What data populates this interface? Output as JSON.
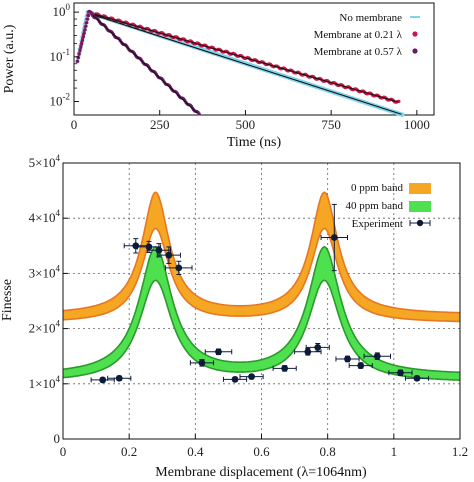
{
  "chart_data": [
    {
      "type": "scatter",
      "panel": "top",
      "xlabel": "Time (ns)",
      "ylabel": "Power (a.u.)",
      "xlim": [
        0,
        1050
      ],
      "ylim_log": [
        0.005,
        1.6
      ],
      "y_scale": "log",
      "grid": false,
      "legend_position": "top-right",
      "x_ticks": [
        {
          "value": 0,
          "label": "0"
        },
        {
          "value": 250,
          "label": "250"
        },
        {
          "value": 500,
          "label": "500"
        },
        {
          "value": 750,
          "label": "750"
        },
        {
          "value": 1000,
          "label": "1000"
        }
      ],
      "y_ticks": [
        {
          "value": 1,
          "label": "10",
          "exp": "0"
        },
        {
          "value": 0.1,
          "label": "10",
          "exp": "-1"
        },
        {
          "value": 0.01,
          "label": "10",
          "exp": "-2"
        }
      ],
      "series": [
        {
          "name": "No membrane",
          "color": "#7fd3ec",
          "peak_x": 40,
          "peak_y": 1.0,
          "end_x": 960,
          "end_y": 0.005
        },
        {
          "name": "Membrane at 0.21 λ",
          "color": "#c8184a",
          "peak_x": 42,
          "peak_y": 1.0,
          "end_x": 950,
          "end_y": 0.0095
        },
        {
          "name": "Membrane at 0.57 λ",
          "color": "#6a1a66",
          "peak_x": 45,
          "peak_y": 1.0,
          "end_x": 365,
          "end_y": 0.0052
        }
      ]
    },
    {
      "type": "line",
      "panel": "bottom",
      "xlabel": "Membrane displacement (λ=1064nm)",
      "ylabel": "Finesse",
      "xlim": [
        0,
        1.2
      ],
      "ylim": [
        0,
        50000
      ],
      "grid": true,
      "legend_position": "top-right",
      "x_ticks": [
        {
          "value": 0,
          "label": "0"
        },
        {
          "value": 0.2,
          "label": "0.2"
        },
        {
          "value": 0.4,
          "label": "0.4"
        },
        {
          "value": 0.6,
          "label": "0.6"
        },
        {
          "value": 0.8,
          "label": "0.8"
        },
        {
          "value": 1.0,
          "label": "1"
        },
        {
          "value": 1.2,
          "label": "1.2"
        }
      ],
      "y_ticks": [
        {
          "value": 0,
          "label": "0",
          "exp": ""
        },
        {
          "value": 10000,
          "label": "1×10",
          "exp": "4"
        },
        {
          "value": 20000,
          "label": "2×10",
          "exp": "4"
        },
        {
          "value": 30000,
          "label": "3×10",
          "exp": "4"
        },
        {
          "value": 40000,
          "label": "4×10",
          "exp": "4"
        },
        {
          "value": 50000,
          "label": "5×10",
          "exp": "4"
        }
      ],
      "bands": [
        {
          "name": "0 ppm band",
          "color": "#f5a623",
          "edge_color": "#e87722",
          "base_low": 21000,
          "base_high": 22500,
          "peak_low": 38000,
          "peak_high": 44500,
          "peaks": [
            0.28,
            0.79
          ]
        },
        {
          "name": "40 ppm band",
          "color": "#4ee04e",
          "edge_color": "#2a9a2a",
          "base_low": 10200,
          "base_high": 11500,
          "peak_low": 28500,
          "peak_high": 34500,
          "peaks": [
            0.28,
            0.79
          ]
        }
      ],
      "experiment": {
        "name": "Experiment",
        "color": "#0d1b3a",
        "points": [
          {
            "x": 0.12,
            "y": 10700,
            "xerr": 0.035,
            "yerr": 400
          },
          {
            "x": 0.17,
            "y": 11000,
            "xerr": 0.035,
            "yerr": 400
          },
          {
            "x": 0.22,
            "y": 35000,
            "xerr": 0.035,
            "yerr": 1300
          },
          {
            "x": 0.26,
            "y": 34800,
            "xerr": 0.035,
            "yerr": 1000
          },
          {
            "x": 0.29,
            "y": 34200,
            "xerr": 0.035,
            "yerr": 1200
          },
          {
            "x": 0.32,
            "y": 33300,
            "xerr": 0.035,
            "yerr": 1500
          },
          {
            "x": 0.35,
            "y": 31000,
            "xerr": 0.04,
            "yerr": 1200
          },
          {
            "x": 0.42,
            "y": 13800,
            "xerr": 0.035,
            "yerr": 600
          },
          {
            "x": 0.47,
            "y": 15800,
            "xerr": 0.04,
            "yerr": 500
          },
          {
            "x": 0.52,
            "y": 10800,
            "xerr": 0.035,
            "yerr": 400
          },
          {
            "x": 0.57,
            "y": 11300,
            "xerr": 0.035,
            "yerr": 400
          },
          {
            "x": 0.67,
            "y": 12800,
            "xerr": 0.035,
            "yerr": 500
          },
          {
            "x": 0.74,
            "y": 15800,
            "xerr": 0.04,
            "yerr": 600
          },
          {
            "x": 0.77,
            "y": 16600,
            "xerr": 0.035,
            "yerr": 700
          },
          {
            "x": 0.82,
            "y": 36500,
            "xerr": 0.04,
            "yerr": 6000
          },
          {
            "x": 0.86,
            "y": 14500,
            "xerr": 0.035,
            "yerr": 500
          },
          {
            "x": 0.9,
            "y": 13300,
            "xerr": 0.035,
            "yerr": 500
          },
          {
            "x": 0.95,
            "y": 15000,
            "xerr": 0.04,
            "yerr": 600
          },
          {
            "x": 1.02,
            "y": 12000,
            "xerr": 0.035,
            "yerr": 500
          },
          {
            "x": 1.07,
            "y": 11000,
            "xerr": 0.035,
            "yerr": 400
          }
        ]
      }
    }
  ]
}
